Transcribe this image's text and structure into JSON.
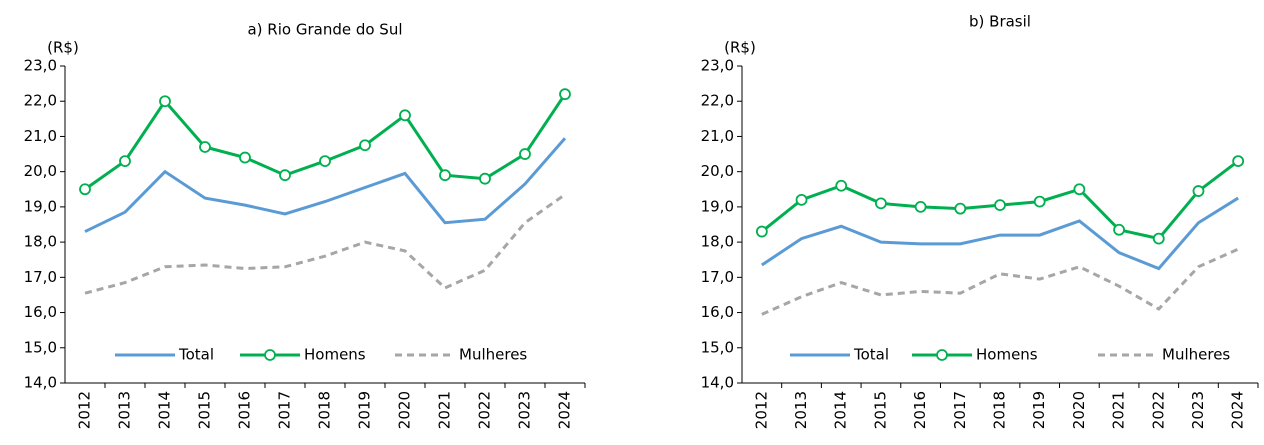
{
  "chart_data": [
    {
      "type": "line",
      "title": "a) Rio Grande do Sul",
      "y_unit": "(R$)",
      "categories": [
        "2012",
        "2013",
        "2014",
        "2015",
        "2016",
        "2017",
        "2018",
        "2019",
        "2020",
        "2021",
        "2022",
        "2023",
        "2024"
      ],
      "ylim": [
        14,
        23
      ],
      "yticks": [
        {
          "value": 14,
          "label": "14,0"
        },
        {
          "value": 15,
          "label": "15,0"
        },
        {
          "value": 16,
          "label": "16,0"
        },
        {
          "value": 17,
          "label": "17,0"
        },
        {
          "value": 18,
          "label": "18,0"
        },
        {
          "value": 19,
          "label": "19,0"
        },
        {
          "value": 20,
          "label": "20,0"
        },
        {
          "value": 21,
          "label": "21,0"
        },
        {
          "value": 22,
          "label": "22,0"
        },
        {
          "value": 23,
          "label": "23,0"
        }
      ],
      "grid": false,
      "legend": "lower center",
      "series": [
        {
          "name": "Total",
          "color": "#5b9bd5",
          "values": [
            18.3,
            18.85,
            20.0,
            19.25,
            19.05,
            18.8,
            19.15,
            19.55,
            19.95,
            18.55,
            18.65,
            19.65,
            20.95
          ]
        },
        {
          "name": "Homens",
          "color": "#00b050",
          "marker": "circle",
          "values": [
            19.5,
            20.3,
            22.0,
            20.7,
            20.4,
            19.9,
            20.3,
            20.75,
            21.6,
            19.9,
            19.8,
            20.5,
            22.2
          ]
        },
        {
          "name": "Mulheres",
          "color": "#a6a6a6",
          "dash": true,
          "values": [
            16.55,
            16.85,
            17.3,
            17.35,
            17.25,
            17.3,
            17.6,
            18.0,
            17.75,
            16.7,
            17.2,
            18.55,
            19.35
          ]
        }
      ]
    },
    {
      "type": "line",
      "title": "b) Brasil",
      "y_unit": "(R$)",
      "categories": [
        "2012",
        "2013",
        "2014",
        "2015",
        "2016",
        "2017",
        "2018",
        "2019",
        "2020",
        "2021",
        "2022",
        "2023",
        "2024"
      ],
      "ylim": [
        14,
        23
      ],
      "yticks": [
        {
          "value": 14,
          "label": "14,0"
        },
        {
          "value": 15,
          "label": "15,0"
        },
        {
          "value": 16,
          "label": "16,0"
        },
        {
          "value": 17,
          "label": "17,0"
        },
        {
          "value": 18,
          "label": "18,0"
        },
        {
          "value": 19,
          "label": "19,0"
        },
        {
          "value": 20,
          "label": "20,0"
        },
        {
          "value": 21,
          "label": "21,0"
        },
        {
          "value": 22,
          "label": "22,0"
        },
        {
          "value": 23,
          "label": "23,0"
        }
      ],
      "grid": false,
      "legend": "lower center",
      "series": [
        {
          "name": "Total",
          "color": "#5b9bd5",
          "values": [
            17.35,
            18.1,
            18.45,
            18.0,
            17.95,
            17.95,
            18.2,
            18.2,
            18.6,
            17.7,
            17.25,
            18.55,
            19.25
          ]
        },
        {
          "name": "Homens",
          "color": "#00b050",
          "marker": "circle",
          "values": [
            18.3,
            19.2,
            19.6,
            19.1,
            19.0,
            18.95,
            19.05,
            19.15,
            19.5,
            18.35,
            18.1,
            19.45,
            20.3
          ]
        },
        {
          "name": "Mulheres",
          "color": "#a6a6a6",
          "dash": true,
          "values": [
            15.95,
            16.45,
            16.85,
            16.5,
            16.6,
            16.55,
            17.1,
            16.95,
            17.3,
            16.75,
            16.1,
            17.3,
            17.8
          ]
        }
      ]
    }
  ]
}
